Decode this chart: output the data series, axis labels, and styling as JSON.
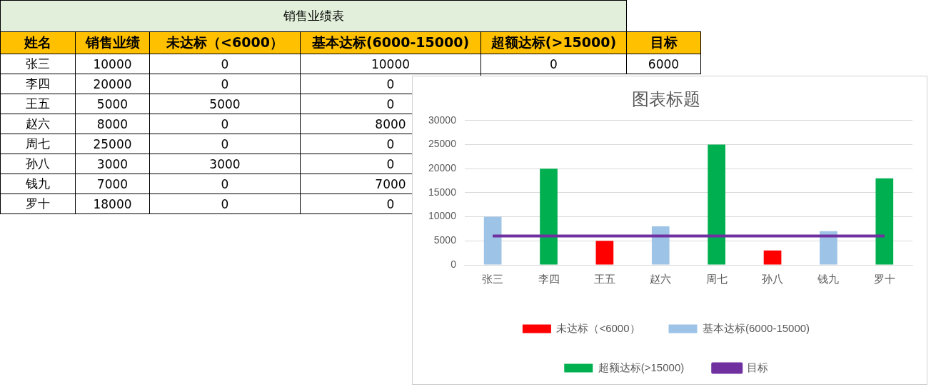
{
  "chart_data": [
    {
      "type": "other",
      "title": "销售业绩表",
      "categories": [
        "姓名",
        "销售业绩",
        "未达标（<6000）",
        "基本达标(6000-15000)",
        "超额达标(>15000)",
        "目标"
      ],
      "annotations": [
        "张三",
        "10000",
        "0",
        "10000",
        "0",
        "6000",
        "李四",
        "20000",
        "0",
        "0",
        "王五",
        "5000",
        "5000",
        "0",
        "赵六",
        "8000",
        "0",
        "8000",
        "周七",
        "25000",
        "0",
        "0",
        "孙八",
        "3000",
        "3000",
        "0",
        "钱九",
        "7000",
        "0",
        "7000",
        "罗十",
        "18000",
        "0",
        "0"
      ]
    },
    {
      "type": "bar",
      "title": "图表标题",
      "categories": [
        "张三",
        "李四",
        "王五",
        "赵六",
        "周七",
        "孙八",
        "钱九",
        "罗十"
      ],
      "series": [
        {
          "name": "未达标（<6000）",
          "color": "#ff0000",
          "values": [
            0,
            0,
            5000,
            0,
            0,
            3000,
            0,
            0
          ]
        },
        {
          "name": "基本达标(6000-15000)",
          "color": "#9dc3e6",
          "values": [
            10000,
            0,
            0,
            8000,
            0,
            0,
            7000,
            0
          ]
        },
        {
          "name": "超额达标(>15000)",
          "color": "#00b050",
          "values": [
            0,
            20000,
            0,
            0,
            25000,
            0,
            0,
            18000
          ]
        },
        {
          "name": "目标",
          "type": "line",
          "color": "#7030a0",
          "values": [
            6000,
            6000,
            6000,
            6000,
            6000,
            6000,
            6000,
            6000
          ]
        }
      ],
      "stacked": true,
      "ylim": [
        0,
        30000
      ],
      "yticks": [
        0,
        5000,
        10000,
        15000,
        20000,
        25000,
        30000
      ],
      "grid": "y",
      "legend": "bottom",
      "marker": "none"
    }
  ]
}
